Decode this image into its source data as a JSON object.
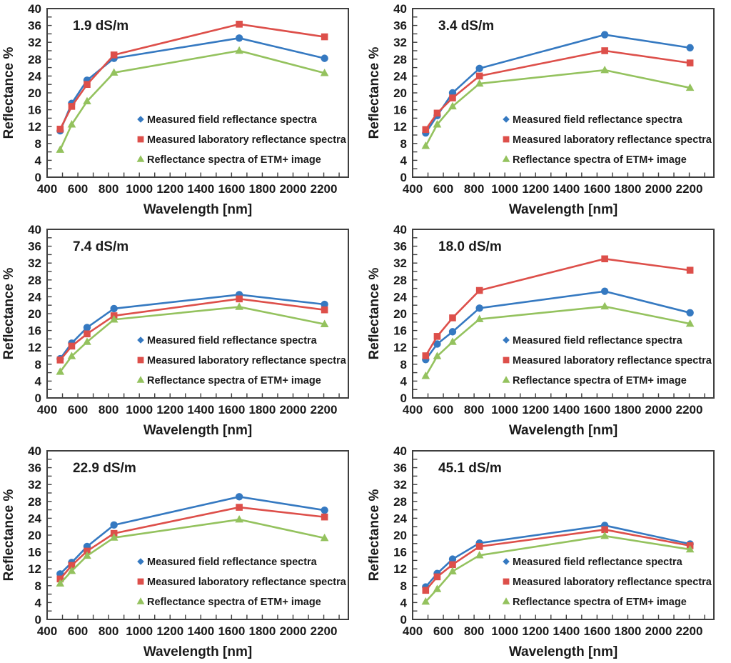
{
  "figure": {
    "name": "soil-salinity-reflectance-spectra-figure",
    "background": "#ffffff",
    "axis_color": "#3f3f3f",
    "text_color": "#1a1a1a"
  },
  "chart_data": [
    {
      "type": "line",
      "title": "1.9 dS/m",
      "xlabel": "Wavelength [nm]",
      "ylabel": "Reflectance %",
      "xlim": [
        400,
        2360
      ],
      "ylim": [
        0,
        40
      ],
      "x_label_ticks": [
        400,
        600,
        800,
        1000,
        1200,
        1400,
        1600,
        1800,
        2000,
        2200
      ],
      "x_minor_step": 100,
      "y_label_step": 4,
      "y_minor_step": 2,
      "grid": false,
      "legend_position": "inside-center-right",
      "x": [
        485,
        560,
        660,
        835,
        1650,
        2205
      ],
      "series": [
        {
          "name": "Measured field reflectance spectra",
          "color": "#3579C1",
          "marker": "circle",
          "legend_marker": "diamond",
          "values": [
            11.0,
            17.5,
            23.0,
            28.2,
            33.0,
            28.2
          ]
        },
        {
          "name": "Measured laboratory reflectance spectra",
          "color": "#DD4F4A",
          "marker": "square",
          "legend_marker": "square",
          "values": [
            11.4,
            16.8,
            22.0,
            29.0,
            36.3,
            33.3
          ]
        },
        {
          "name": "Reflectance spectra of ETM+ image",
          "color": "#94C25E",
          "marker": "triangle",
          "legend_marker": "triangle",
          "values": [
            6.5,
            12.5,
            18.0,
            24.8,
            30.0,
            24.7
          ]
        }
      ]
    },
    {
      "type": "line",
      "title": "3.4 dS/m",
      "xlabel": "Wavelength [nm]",
      "ylabel": "Reflectance %",
      "xlim": [
        400,
        2360
      ],
      "ylim": [
        0,
        40
      ],
      "x_label_ticks": [
        400,
        600,
        800,
        1000,
        1200,
        1400,
        1600,
        1800,
        2000,
        2200
      ],
      "x_minor_step": 100,
      "y_label_step": 4,
      "y_minor_step": 2,
      "grid": false,
      "legend_position": "inside-center-right",
      "x": [
        485,
        560,
        660,
        835,
        1650,
        2205
      ],
      "series": [
        {
          "name": "Measured field reflectance spectra",
          "color": "#3579C1",
          "marker": "circle",
          "legend_marker": "diamond",
          "values": [
            10.5,
            14.6,
            20.0,
            25.8,
            33.8,
            30.7
          ]
        },
        {
          "name": "Measured laboratory reflectance spectra",
          "color": "#DD4F4A",
          "marker": "square",
          "legend_marker": "square",
          "values": [
            11.3,
            15.2,
            18.8,
            24.0,
            30.0,
            27.1
          ]
        },
        {
          "name": "Reflectance spectra of ETM+ image",
          "color": "#94C25E",
          "marker": "triangle",
          "legend_marker": "triangle",
          "values": [
            7.4,
            12.5,
            16.8,
            22.2,
            25.4,
            21.2
          ]
        }
      ]
    },
    {
      "type": "line",
      "title": "7.4 dS/m",
      "xlabel": "Wavelength [nm]",
      "ylabel": "Reflectance %",
      "xlim": [
        400,
        2360
      ],
      "ylim": [
        0,
        40
      ],
      "x_label_ticks": [
        400,
        600,
        800,
        1000,
        1200,
        1400,
        1600,
        1800,
        2000,
        2200
      ],
      "x_minor_step": 100,
      "y_label_step": 4,
      "y_minor_step": 2,
      "grid": false,
      "legend_position": "inside-center-right",
      "x": [
        485,
        560,
        660,
        835,
        1650,
        2205
      ],
      "series": [
        {
          "name": "Measured field reflectance spectra",
          "color": "#3579C1",
          "marker": "circle",
          "legend_marker": "diamond",
          "values": [
            9.3,
            13.0,
            16.7,
            21.2,
            24.5,
            22.2
          ]
        },
        {
          "name": "Measured laboratory reflectance spectra",
          "color": "#DD4F4A",
          "marker": "square",
          "legend_marker": "square",
          "values": [
            9.0,
            12.3,
            15.2,
            19.5,
            23.5,
            20.9
          ]
        },
        {
          "name": "Reflectance spectra of ETM+ image",
          "color": "#94C25E",
          "marker": "triangle",
          "legend_marker": "triangle",
          "values": [
            6.2,
            9.9,
            13.3,
            18.6,
            21.6,
            17.5
          ]
        }
      ]
    },
    {
      "type": "line",
      "title": "18.0 dS/m",
      "xlabel": "Wavelength [nm]",
      "ylabel": "Reflectance %",
      "xlim": [
        400,
        2360
      ],
      "ylim": [
        0,
        40
      ],
      "x_label_ticks": [
        400,
        600,
        800,
        1000,
        1200,
        1400,
        1600,
        1800,
        2000,
        2200
      ],
      "x_minor_step": 100,
      "y_label_step": 4,
      "y_minor_step": 2,
      "grid": false,
      "legend_position": "inside-center-right",
      "x": [
        485,
        560,
        660,
        835,
        1650,
        2205
      ],
      "series": [
        {
          "name": "Measured field reflectance spectra",
          "color": "#3579C1",
          "marker": "circle",
          "legend_marker": "diamond",
          "values": [
            9.1,
            12.8,
            15.7,
            21.3,
            25.3,
            20.2
          ]
        },
        {
          "name": "Measured laboratory reflectance spectra",
          "color": "#DD4F4A",
          "marker": "square",
          "legend_marker": "square",
          "values": [
            10.0,
            14.6,
            19.0,
            25.5,
            33.0,
            30.3
          ]
        },
        {
          "name": "Reflectance spectra of ETM+ image",
          "color": "#94C25E",
          "marker": "triangle",
          "legend_marker": "triangle",
          "values": [
            5.2,
            9.9,
            13.3,
            18.7,
            21.7,
            17.6
          ]
        }
      ]
    },
    {
      "type": "line",
      "title": "22.9 dS/m",
      "xlabel": "Wavelength [nm]",
      "ylabel": "Reflectance %",
      "xlim": [
        400,
        2360
      ],
      "ylim": [
        0,
        40
      ],
      "x_label_ticks": [
        400,
        600,
        800,
        1000,
        1200,
        1400,
        1600,
        1800,
        2000,
        2200
      ],
      "x_minor_step": 100,
      "y_label_step": 4,
      "y_minor_step": 2,
      "grid": false,
      "legend_position": "inside-center-right",
      "x": [
        485,
        560,
        660,
        835,
        1650,
        2205
      ],
      "series": [
        {
          "name": "Measured field reflectance spectra",
          "color": "#3579C1",
          "marker": "circle",
          "legend_marker": "diamond",
          "values": [
            10.8,
            13.5,
            17.3,
            22.4,
            29.1,
            25.9
          ]
        },
        {
          "name": "Measured laboratory reflectance spectra",
          "color": "#DD4F4A",
          "marker": "square",
          "legend_marker": "square",
          "values": [
            9.6,
            12.8,
            16.2,
            20.4,
            26.6,
            24.3
          ]
        },
        {
          "name": "Reflectance spectra of ETM+ image",
          "color": "#94C25E",
          "marker": "triangle",
          "legend_marker": "triangle",
          "values": [
            8.5,
            11.5,
            15.1,
            19.4,
            23.7,
            19.3
          ]
        }
      ]
    },
    {
      "type": "line",
      "title": "45.1 dS/m",
      "xlabel": "Wavelength [nm]",
      "ylabel": "Reflectance %",
      "xlim": [
        400,
        2360
      ],
      "ylim": [
        0,
        40
      ],
      "x_label_ticks": [
        400,
        600,
        800,
        1000,
        1200,
        1400,
        1600,
        1800,
        2000,
        2200
      ],
      "x_minor_step": 100,
      "y_label_step": 4,
      "y_minor_step": 2,
      "grid": false,
      "legend_position": "inside-center-right",
      "x": [
        485,
        560,
        660,
        835,
        1650,
        2205
      ],
      "series": [
        {
          "name": "Measured field reflectance spectra",
          "color": "#3579C1",
          "marker": "circle",
          "legend_marker": "diamond",
          "values": [
            7.7,
            10.9,
            14.3,
            18.1,
            22.3,
            17.9
          ]
        },
        {
          "name": "Measured laboratory reflectance spectra",
          "color": "#DD4F4A",
          "marker": "square",
          "legend_marker": "square",
          "values": [
            6.9,
            10.1,
            13.0,
            17.3,
            21.3,
            17.5
          ]
        },
        {
          "name": "Reflectance spectra of ETM+ image",
          "color": "#94C25E",
          "marker": "triangle",
          "legend_marker": "triangle",
          "values": [
            4.2,
            7.2,
            11.4,
            15.2,
            19.8,
            16.6
          ]
        }
      ]
    }
  ]
}
